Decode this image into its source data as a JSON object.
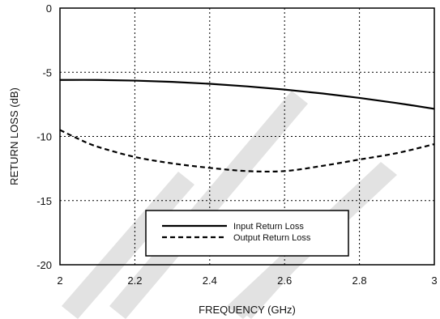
{
  "chart_data": {
    "type": "line",
    "title": "",
    "xlabel": "FREQUENCY (GHz)",
    "ylabel": "RETURN LOSS (dB)",
    "xlim": [
      2,
      3
    ],
    "ylim": [
      -20,
      0
    ],
    "xticks": [
      2,
      2.2,
      2.4,
      2.6,
      2.8,
      3
    ],
    "xtick_labels": [
      "2",
      "2.2",
      "2.4",
      "2.6",
      "2.8",
      "3"
    ],
    "yticks": [
      0,
      -5,
      -10,
      -15,
      -20
    ],
    "ytick_labels": [
      "0",
      "-5",
      "-10",
      "-15",
      "-20"
    ],
    "grid": "dotted",
    "legend_position": "bottom-center",
    "watermark_text": "TBE",
    "series": [
      {
        "name": "Input Return Loss",
        "style": "solid",
        "color": "#000000",
        "x": [
          2.0,
          2.1,
          2.2,
          2.3,
          2.4,
          2.5,
          2.6,
          2.7,
          2.8,
          2.9,
          3.0
        ],
        "y": [
          -5.6,
          -5.6,
          -5.65,
          -5.75,
          -5.9,
          -6.1,
          -6.35,
          -6.65,
          -7.0,
          -7.4,
          -7.85
        ]
      },
      {
        "name": "Output Return Loss",
        "style": "dashed",
        "color": "#000000",
        "x": [
          2.0,
          2.05,
          2.1,
          2.2,
          2.3,
          2.4,
          2.5,
          2.6,
          2.7,
          2.8,
          2.9,
          3.0
        ],
        "y": [
          -9.5,
          -10.2,
          -10.8,
          -11.6,
          -12.1,
          -12.45,
          -12.7,
          -12.7,
          -12.3,
          -11.8,
          -11.3,
          -10.6
        ]
      }
    ]
  },
  "colors": {
    "axis": "#000000",
    "grid": "#000000",
    "watermark": "#e2e2e2"
  }
}
